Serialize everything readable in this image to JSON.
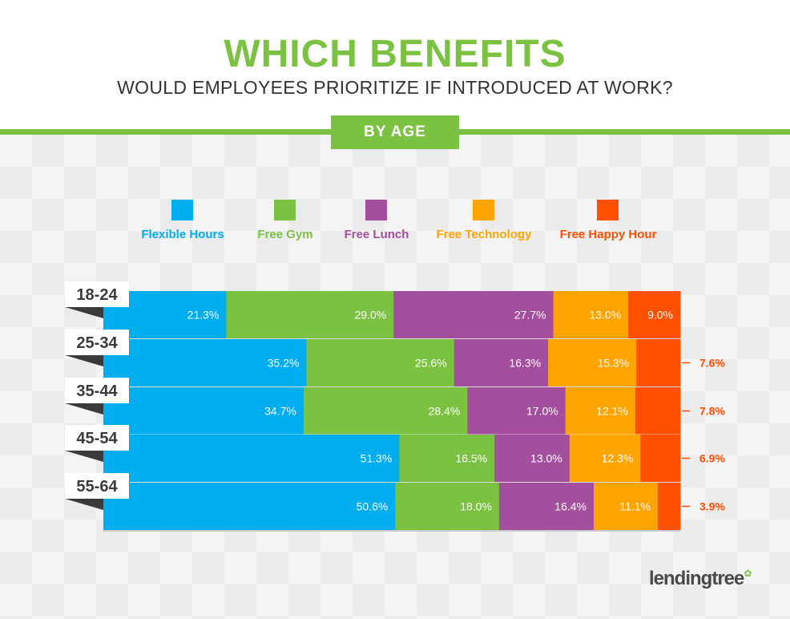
{
  "header": {
    "title": "WHICH BENEFITS",
    "subtitle": "WOULD EMPLOYEES PRIORITIZE IF INTRODUCED AT WORK?",
    "badge": "BY AGE"
  },
  "logo": {
    "text": "lendingtree",
    "accent_color": "#7cc242"
  },
  "colors": {
    "title_green": "#7cc242",
    "blue": "#00adef",
    "green": "#7cc242",
    "purple": "#a34f9e",
    "orange": "#ffa400",
    "red": "#ff4f00"
  },
  "chart_data": {
    "type": "bar",
    "stacked": true,
    "orientation": "horizontal",
    "categories": [
      "18-24",
      "25-34",
      "35-44",
      "45-54",
      "55-64"
    ],
    "series": [
      {
        "name": "Flexible Hours",
        "color": "#00adef",
        "values": [
          21.3,
          35.2,
          34.7,
          51.3,
          50.6
        ],
        "labels": [
          "21.3%",
          "35.2%",
          "34.7%",
          "51.3%",
          "50.6%"
        ]
      },
      {
        "name": "Free Gym",
        "color": "#7cc242",
        "values": [
          29.0,
          25.6,
          28.4,
          16.5,
          18.0
        ],
        "labels": [
          "29.0%",
          "25.6%",
          "28.4%",
          "16.5%",
          "18.0%"
        ]
      },
      {
        "name": "Free Lunch",
        "color": "#a34f9e",
        "values": [
          27.7,
          16.3,
          17.0,
          13.0,
          16.4
        ],
        "labels": [
          "27.7%",
          "16.3%",
          "17.0%",
          "13.0%",
          "16.4%"
        ]
      },
      {
        "name": "Free Technology",
        "color": "#ffa400",
        "values": [
          13.0,
          15.3,
          12.1,
          12.3,
          11.1
        ],
        "labels": [
          "13.0%",
          "15.3%",
          "12.1%",
          "12.3%",
          "11.1%"
        ]
      },
      {
        "name": "Free Happy Hour",
        "color": "#ff4f00",
        "values": [
          9.0,
          7.6,
          7.8,
          6.9,
          3.9
        ],
        "labels": [
          "9.0%",
          "7.6%",
          "7.8%",
          "6.9%",
          "3.9%"
        ]
      }
    ],
    "outside_label_series": "Free Happy Hour",
    "outside_label_rows": [
      1,
      2,
      3,
      4
    ],
    "legend_position": "top",
    "grid": false
  }
}
